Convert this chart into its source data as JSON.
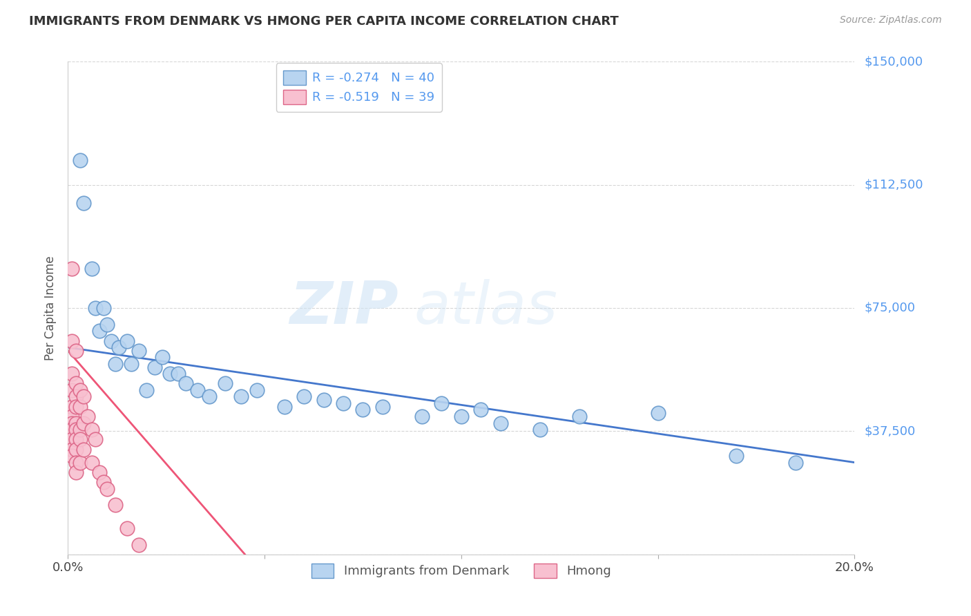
{
  "title": "IMMIGRANTS FROM DENMARK VS HMONG PER CAPITA INCOME CORRELATION CHART",
  "source": "Source: ZipAtlas.com",
  "ylabel": "Per Capita Income",
  "xlim": [
    0.0,
    0.2
  ],
  "ylim": [
    0,
    150000
  ],
  "yticks": [
    0,
    37500,
    75000,
    112500,
    150000
  ],
  "ytick_labels": [
    "",
    "$37,500",
    "$75,000",
    "$112,500",
    "$150,000"
  ],
  "xticks": [
    0.0,
    0.05,
    0.1,
    0.15,
    0.2
  ],
  "xtick_labels": [
    "0.0%",
    "",
    "",
    "",
    "20.0%"
  ],
  "denmark_color": "#b8d4f0",
  "denmark_edge_color": "#6699cc",
  "hmong_color": "#f8c0d0",
  "hmong_edge_color": "#dd6688",
  "denmark_line_color": "#4477cc",
  "hmong_line_color": "#ee5577",
  "denmark_R": -0.274,
  "denmark_N": 40,
  "hmong_R": -0.519,
  "hmong_N": 39,
  "legend_label_denmark": "Immigrants from Denmark",
  "legend_label_hmong": "Hmong",
  "watermark_zip": "ZIP",
  "watermark_atlas": "atlas",
  "background_color": "#ffffff",
  "grid_color": "#cccccc",
  "ytick_color": "#5599ee",
  "title_color": "#333333",
  "source_color": "#999999",
  "denmark_x": [
    0.003,
    0.004,
    0.006,
    0.007,
    0.008,
    0.009,
    0.01,
    0.011,
    0.012,
    0.013,
    0.015,
    0.016,
    0.018,
    0.02,
    0.022,
    0.024,
    0.026,
    0.028,
    0.03,
    0.033,
    0.036,
    0.04,
    0.044,
    0.048,
    0.055,
    0.06,
    0.065,
    0.07,
    0.075,
    0.08,
    0.09,
    0.095,
    0.1,
    0.105,
    0.11,
    0.12,
    0.13,
    0.15,
    0.17,
    0.185
  ],
  "denmark_y": [
    120000,
    107000,
    87000,
    75000,
    68000,
    75000,
    70000,
    65000,
    58000,
    63000,
    65000,
    58000,
    62000,
    50000,
    57000,
    60000,
    55000,
    55000,
    52000,
    50000,
    48000,
    52000,
    48000,
    50000,
    45000,
    48000,
    47000,
    46000,
    44000,
    45000,
    42000,
    46000,
    42000,
    44000,
    40000,
    38000,
    42000,
    43000,
    30000,
    28000
  ],
  "hmong_x": [
    0.001,
    0.001,
    0.001,
    0.001,
    0.001,
    0.001,
    0.001,
    0.001,
    0.001,
    0.001,
    0.001,
    0.002,
    0.002,
    0.002,
    0.002,
    0.002,
    0.002,
    0.002,
    0.002,
    0.002,
    0.002,
    0.003,
    0.003,
    0.003,
    0.003,
    0.003,
    0.004,
    0.004,
    0.004,
    0.005,
    0.006,
    0.006,
    0.007,
    0.008,
    0.009,
    0.01,
    0.012,
    0.015,
    0.018
  ],
  "hmong_y": [
    87000,
    65000,
    55000,
    50000,
    45000,
    42000,
    40000,
    38000,
    35000,
    32000,
    30000,
    62000,
    52000,
    48000,
    45000,
    40000,
    38000,
    35000,
    32000,
    28000,
    25000,
    50000,
    45000,
    38000,
    35000,
    28000,
    48000,
    40000,
    32000,
    42000,
    38000,
    28000,
    35000,
    25000,
    22000,
    20000,
    15000,
    8000,
    3000
  ],
  "dk_line_x0": 0.0,
  "dk_line_y0": 63000,
  "dk_line_x1": 0.2,
  "dk_line_y1": 28000,
  "hm_line_x0": 0.0,
  "hm_line_y0": 62000,
  "hm_line_x1": 0.045,
  "hm_line_y1": 0
}
